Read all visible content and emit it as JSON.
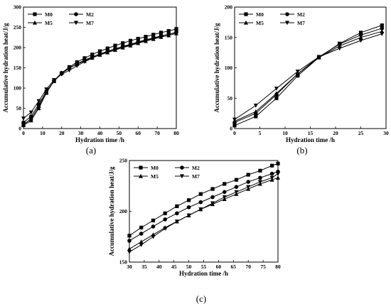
{
  "chart_data": [
    {
      "type": "line",
      "panel_label": "(a)",
      "xlabel": "Hydration time /h",
      "ylabel": "Accumulative hydration heat/J/g",
      "xlim": [
        0,
        80
      ],
      "ylim": [
        0,
        300
      ],
      "xticks": [
        0,
        10,
        20,
        30,
        40,
        50,
        60,
        70,
        80
      ],
      "yticks": [
        0,
        50,
        100,
        150,
        200,
        250,
        300
      ],
      "legend_position": "top-left",
      "series": [
        {
          "name": "M0",
          "marker": "square",
          "x": [
            0,
            4,
            8,
            12,
            16,
            20,
            24,
            28,
            32,
            36,
            40,
            44,
            48,
            52,
            56,
            60,
            64,
            68,
            72,
            76,
            80
          ],
          "y": [
            10,
            24,
            55,
            90,
            117,
            137,
            152,
            164,
            174,
            183,
            191,
            198,
            205,
            211,
            217,
            222,
            227,
            232,
            237,
            241,
            246
          ]
        },
        {
          "name": "M2",
          "marker": "circle",
          "x": [
            0,
            4,
            8,
            12,
            16,
            20,
            24,
            28,
            32,
            36,
            40,
            44,
            48,
            52,
            56,
            60,
            64,
            68,
            72,
            76,
            80
          ],
          "y": [
            15,
            30,
            60,
            92,
            117,
            136,
            149,
            160,
            169,
            177,
            184,
            191,
            197,
            203,
            208,
            214,
            219,
            224,
            229,
            233,
            238
          ]
        },
        {
          "name": "M5",
          "marker": "triangle-up",
          "x": [
            0,
            4,
            8,
            12,
            16,
            20,
            24,
            28,
            32,
            36,
            40,
            44,
            48,
            52,
            56,
            60,
            64,
            68,
            72,
            76,
            80
          ],
          "y": [
            8,
            20,
            50,
            88,
            118,
            138,
            150,
            159,
            167,
            175,
            182,
            188,
            194,
            200,
            205,
            211,
            216,
            221,
            226,
            230,
            235
          ]
        },
        {
          "name": "M7",
          "marker": "triangle-down",
          "x": [
            0,
            4,
            8,
            12,
            16,
            20,
            24,
            28,
            32,
            36,
            40,
            44,
            48,
            52,
            56,
            60,
            64,
            68,
            72,
            76,
            80
          ],
          "y": [
            25,
            40,
            68,
            97,
            120,
            134,
            144,
            155,
            165,
            174,
            183,
            189,
            195,
            201,
            207,
            212,
            218,
            223,
            228,
            233,
            237
          ]
        }
      ]
    },
    {
      "type": "line",
      "panel_label": "(b)",
      "xlabel": "Hydration time /h",
      "ylabel": "Accumulative hydration heat/J/g",
      "xlim": [
        0,
        30
      ],
      "ylim": [
        0,
        200
      ],
      "xticks": [
        0,
        5,
        10,
        15,
        20,
        25,
        30
      ],
      "yticks": [
        0,
        50,
        100,
        150,
        200
      ],
      "legend_position": "top-left",
      "series": [
        {
          "name": "M0",
          "marker": "square",
          "x": [
            0,
            4.2,
            8.3,
            12.5,
            16.7,
            20.8,
            25,
            29.2
          ],
          "y": [
            5,
            20,
            50,
            87,
            117,
            140,
            158,
            170
          ]
        },
        {
          "name": "M2",
          "marker": "circle",
          "x": [
            0,
            4.2,
            8.3,
            12.5,
            16.7,
            20.8,
            25,
            29.2
          ],
          "y": [
            10,
            25,
            56,
            90,
            118,
            139,
            154,
            165
          ]
        },
        {
          "name": "M5",
          "marker": "triangle-up",
          "x": [
            0,
            4.2,
            8.3,
            12.5,
            16.7,
            20.8,
            25,
            29.2
          ],
          "y": [
            12,
            28,
            58,
            90,
            117,
            136,
            150,
            160
          ]
        },
        {
          "name": "M7",
          "marker": "triangle-down",
          "x": [
            0,
            4.2,
            8.3,
            12.5,
            16.7,
            20.8,
            25,
            29.2
          ],
          "y": [
            15,
            38,
            66,
            94,
            118,
            132,
            145,
            156
          ]
        }
      ]
    },
    {
      "type": "line",
      "panel_label": "(c)",
      "xlabel": "Hydration time /h",
      "ylabel": "Accumulative hydration heat/J/g",
      "xlim": [
        30,
        80
      ],
      "ylim": [
        150,
        250
      ],
      "xticks": [
        30,
        35,
        40,
        45,
        50,
        55,
        60,
        65,
        70,
        75,
        80
      ],
      "yticks": [
        150,
        200,
        250
      ],
      "legend_position": "top-left",
      "series": [
        {
          "name": "M0",
          "marker": "square",
          "x": [
            30,
            34,
            38,
            42,
            46,
            50,
            54,
            58,
            62,
            66,
            70,
            74,
            78,
            80
          ],
          "y": [
            176,
            184,
            191,
            198,
            205,
            211,
            217,
            222,
            227,
            231,
            236,
            240,
            245,
            247
          ]
        },
        {
          "name": "M2",
          "marker": "circle",
          "x": [
            30,
            34,
            38,
            42,
            46,
            50,
            54,
            58,
            62,
            66,
            70,
            74,
            78,
            80
          ],
          "y": [
            171,
            178,
            185,
            192,
            198,
            204,
            209,
            214,
            219,
            224,
            229,
            233,
            237,
            239
          ]
        },
        {
          "name": "M5",
          "marker": "triangle-up",
          "x": [
            30,
            34,
            38,
            42,
            46,
            50,
            54,
            58,
            62,
            66,
            70,
            74,
            78,
            80
          ],
          "y": [
            163,
            170,
            177,
            184,
            190,
            196,
            202,
            207,
            212,
            217,
            222,
            227,
            231,
            233
          ]
        },
        {
          "name": "M7",
          "marker": "triangle-down",
          "x": [
            30,
            34,
            38,
            42,
            46,
            50,
            54,
            58,
            62,
            66,
            70,
            74,
            78,
            80
          ],
          "y": [
            160,
            167,
            175,
            183,
            190,
            196,
            202,
            208,
            214,
            219,
            224,
            229,
            233,
            237
          ]
        }
      ]
    }
  ]
}
